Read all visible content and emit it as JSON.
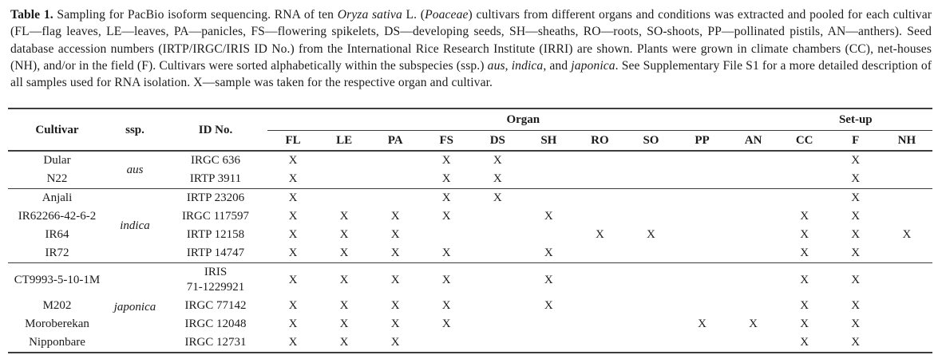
{
  "caption": {
    "runs": [
      {
        "t": "Table 1.",
        "b": true
      },
      {
        "t": " Sampling for PacBio isoform sequencing. RNA of ten "
      },
      {
        "t": "Oryza sativa",
        "i": true
      },
      {
        "t": " L. ("
      },
      {
        "t": "Poaceae",
        "i": true
      },
      {
        "t": ") cultivars from different organs and conditions was extracted and pooled for each cultivar (FL—flag leaves, LE—leaves, PA—panicles, FS—flowering spikelets, DS—developing seeds, SH—sheaths, RO—roots, SO-shoots, PP—pollinated pistils, AN—anthers). Seed database accession numbers (IRTP/IRGC/IRIS ID No.) from the International Rice Research Institute (IRRI) are shown. Plants were grown in climate chambers (CC), net-houses (NH), and/or in the field (F). Cultivars were sorted alphabetically within the subspecies (ssp.) "
      },
      {
        "t": "aus",
        "i": true
      },
      {
        "t": ", "
      },
      {
        "t": "indica",
        "i": true
      },
      {
        "t": ", and "
      },
      {
        "t": "japonica",
        "i": true
      },
      {
        "t": ". See Supplementary File S1 for a more detailed description of all samples used for RNA isolation. X—sample was taken for the respective organ and cultivar."
      }
    ]
  },
  "table": {
    "header": {
      "cultivar": "Cultivar",
      "ssp": "ssp.",
      "id": "ID No.",
      "organ": "Organ",
      "setup": "Set-up"
    },
    "organ_cols": [
      "FL",
      "LE",
      "PA",
      "FS",
      "DS",
      "SH",
      "RO",
      "SO",
      "PP",
      "AN"
    ],
    "setup_cols": [
      "CC",
      "F",
      "NH"
    ],
    "mark": "X",
    "groups": [
      {
        "ssp": "aus",
        "rows": [
          {
            "cultivar": "Dular",
            "id": "IRGC 636",
            "marks": [
              "FL",
              "FS",
              "DS",
              "F"
            ]
          },
          {
            "cultivar": "N22",
            "id": "IRTP 3911",
            "marks": [
              "FL",
              "FS",
              "DS",
              "F"
            ]
          }
        ]
      },
      {
        "ssp": "indica",
        "rows": [
          {
            "cultivar": "Anjali",
            "id": "IRTP 23206",
            "marks": [
              "FL",
              "FS",
              "DS",
              "F"
            ]
          },
          {
            "cultivar": "IR62266-42-6-2",
            "id": "IRGC 117597",
            "marks": [
              "FL",
              "LE",
              "PA",
              "FS",
              "SH",
              "CC",
              "F"
            ]
          },
          {
            "cultivar": "IR64",
            "id": "IRTP 12158",
            "marks": [
              "FL",
              "LE",
              "PA",
              "RO",
              "SO",
              "CC",
              "F",
              "NH"
            ]
          },
          {
            "cultivar": "IR72",
            "id": "IRTP 14747",
            "marks": [
              "FL",
              "LE",
              "PA",
              "FS",
              "SH",
              "CC",
              "F"
            ]
          }
        ]
      },
      {
        "ssp": "japonica",
        "rows": [
          {
            "cultivar": "CT9993-5-10-1M",
            "id": "IRIS\n71-1229921",
            "marks": [
              "FL",
              "LE",
              "PA",
              "FS",
              "SH",
              "CC",
              "F"
            ]
          },
          {
            "cultivar": "M202",
            "id": "IRGC 77142",
            "marks": [
              "FL",
              "LE",
              "PA",
              "FS",
              "SH",
              "CC",
              "F"
            ]
          },
          {
            "cultivar": "Moroberekan",
            "id": "IRGC 12048",
            "marks": [
              "FL",
              "LE",
              "PA",
              "FS",
              "PP",
              "AN",
              "CC",
              "F"
            ]
          },
          {
            "cultivar": "Nipponbare",
            "id": "IRGC 12731",
            "marks": [
              "FL",
              "LE",
              "PA",
              "CC",
              "F"
            ]
          }
        ]
      }
    ]
  }
}
